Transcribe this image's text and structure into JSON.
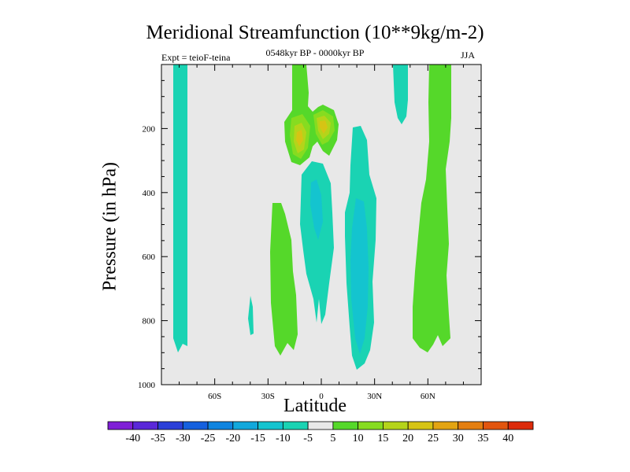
{
  "chart_data": {
    "type": "contour",
    "title": "Meridional Streamfunction (10**9kg/m-2)",
    "subtitle": "0548kyr BP - 0000kyr BP",
    "experiment": "Expt = teioF-teina",
    "season": "JJA",
    "xlabel": "Latitude",
    "ylabel": "Pressure (in hPa)",
    "xlim": [
      -90,
      90
    ],
    "ylim": [
      1000,
      0
    ],
    "x_ticks": [
      -60,
      -30,
      0,
      30,
      60
    ],
    "x_tick_labels": [
      "60S",
      "30S",
      "0",
      "30N",
      "60N"
    ],
    "y_ticks": [
      200,
      400,
      600,
      800,
      1000
    ],
    "y_tick_labels": [
      "200",
      "400",
      "600",
      "800",
      "1000"
    ],
    "colorbar": {
      "levels": [
        -40,
        -35,
        -30,
        -25,
        -20,
        -15,
        -10,
        -5,
        5,
        10,
        15,
        20,
        25,
        30,
        35,
        40
      ],
      "labels": [
        "-40",
        "-35",
        "-30",
        "-25",
        "-20",
        "-15",
        "-10",
        "-5",
        "5",
        "10",
        "15",
        "20",
        "25",
        "30",
        "35",
        "40"
      ],
      "colors": [
        "#7f1fd6",
        "#5a28d9",
        "#2b3fd8",
        "#1560de",
        "#0f84e0",
        "#12a8dc",
        "#14c4cf",
        "#1ad3b3",
        "#e8e8e8",
        "#55d82a",
        "#86dc20",
        "#b5d41a",
        "#d6c414",
        "#e3a412",
        "#e47e10",
        "#e2550e",
        "#dc2a0a"
      ]
    },
    "regions": [
      {
        "label": "-5 to -10",
        "color": "#1ad3b3"
      },
      {
        "label": "-10 to -15",
        "color": "#14c4cf"
      },
      {
        "label": "5 to 10",
        "color": "#55d82a"
      },
      {
        "label": "10 to 15",
        "color": "#86dc20"
      },
      {
        "label": "15 to 20",
        "color": "#b5d41a"
      },
      {
        "label": "20 to 25",
        "color": "#d6c414"
      }
    ],
    "background_color": "#e8e8e8"
  }
}
